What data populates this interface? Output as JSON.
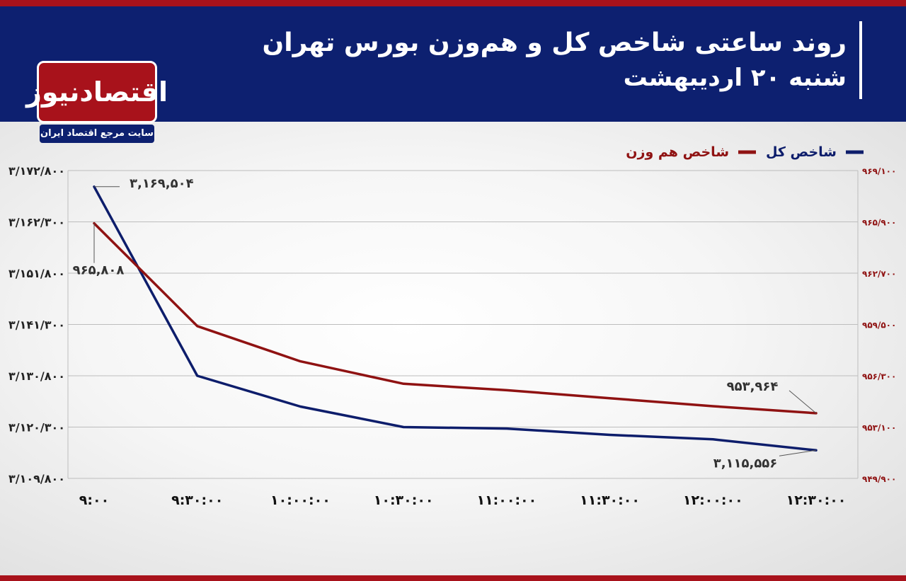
{
  "header": {
    "title_line1": "روند ساعتی شاخص کل و هم‌وزن بورس تهران",
    "title_line2": "شنبه ۲۰ اردیبهشت"
  },
  "logo": {
    "name": "اقتصادنیوز",
    "tagline": "سایت مرجع اقتصاد ایران"
  },
  "colors": {
    "header_bg": "#0d2070",
    "accent_red": "#a8121b",
    "total_index": "#0d1d6b",
    "equal_weight_index": "#8f1212"
  },
  "chart_data": {
    "type": "line",
    "categories": [
      "۹:۰۰",
      "۹:۳۰:۰۰",
      "۱۰:۰۰:۰۰",
      "۱۰:۳۰:۰۰",
      "۱۱:۰۰:۰۰",
      "۱۱:۳۰:۰۰",
      "۱۲:۰۰:۰۰",
      "۱۲:۳۰:۰۰"
    ],
    "series": [
      {
        "name": "شاخص کل",
        "axis": "left",
        "color": "#0d1d6b",
        "values": [
          3169504,
          3130800,
          3124500,
          3120300,
          3120000,
          3118700,
          3117800,
          3115556
        ]
      },
      {
        "name": "شاخص هم وزن",
        "axis": "right",
        "color": "#8f1212",
        "values": [
          965808,
          959400,
          957200,
          955800,
          955400,
          954900,
          954400,
          953964
        ]
      }
    ],
    "y_left": {
      "min": 3109800,
      "max": 3172800,
      "ticks": [
        3172800,
        3162300,
        3151800,
        3141300,
        3130800,
        3120300,
        3109800
      ],
      "tick_labels": [
        "۳/۱۷۲/۸۰۰",
        "۳/۱۶۲/۳۰۰",
        "۳/۱۵۱/۸۰۰",
        "۳/۱۴۱/۳۰۰",
        "۳/۱۳۰/۸۰۰",
        "۳/۱۲۰/۳۰۰",
        "۳/۱۰۹/۸۰۰"
      ]
    },
    "y_right": {
      "min": 949900,
      "max": 969100,
      "tick_labels": [
        "۹۶۹/۱۰۰",
        "۹۶۵/۹۰۰",
        "۹۶۲/۷۰۰",
        "۹۵۹/۵۰۰",
        "۹۵۶/۳۰۰",
        "۹۵۳/۱۰۰",
        "۹۴۹/۹۰۰"
      ]
    },
    "annotations": [
      {
        "series": 0,
        "point": 0,
        "text": "۳,۱۶۹,۵۰۴"
      },
      {
        "series": 1,
        "point": 0,
        "text": "۹۶۵,۸۰۸"
      },
      {
        "series": 1,
        "point": 7,
        "text": "۹۵۳,۹۶۴"
      },
      {
        "series": 0,
        "point": 7,
        "text": "۳,۱۱۵,۵۵۶"
      }
    ],
    "grid": true,
    "legend": "top-right"
  }
}
